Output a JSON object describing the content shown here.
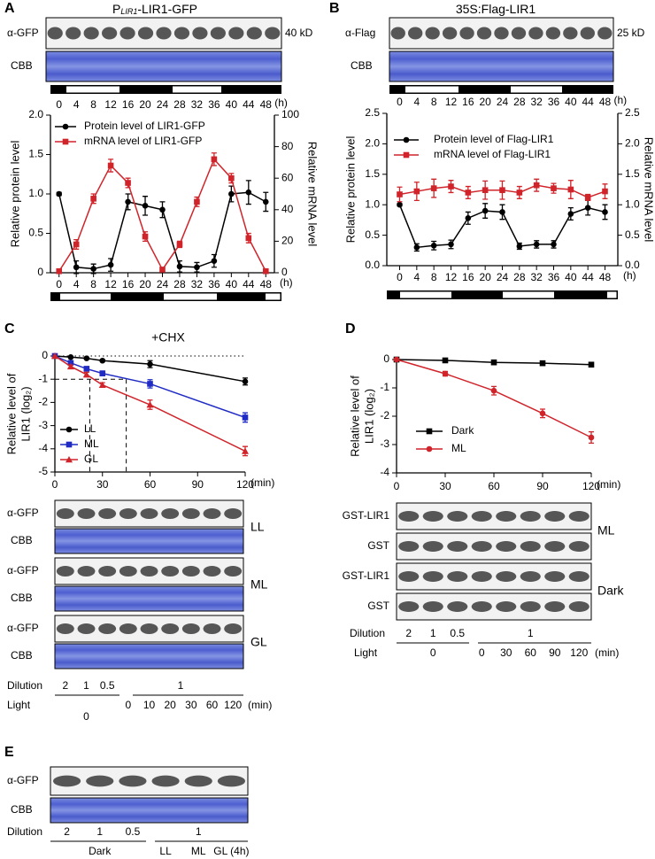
{
  "chart_data": [
    {
      "type": "line",
      "label": "A",
      "title": "P",
      "title_subscript": "LIR1",
      "title_suffix": "-LIR1-GFP",
      "x": [
        0,
        4,
        8,
        12,
        16,
        20,
        24,
        28,
        32,
        36,
        40,
        44,
        48
      ],
      "xlim": [
        -2,
        50
      ],
      "xticks": [
        0,
        4,
        8,
        12,
        16,
        20,
        24,
        28,
        32,
        36,
        40,
        44,
        48
      ],
      "xlabel": "(h)",
      "ylabel": "Relative protein level",
      "ylim": [
        0,
        2
      ],
      "yticks": [
        0,
        0.5,
        {
          "value": 1,
          "label": "1.0"
        },
        1.5,
        {
          "value": 2,
          "label": "2.0"
        }
      ],
      "y2label": "Relative mRNA level",
      "y2lim": [
        0,
        100
      ],
      "y2ticks": [
        0,
        20,
        40,
        60,
        80,
        100
      ],
      "series": [
        {
          "name": "Protein level of LIR1-GFP",
          "color": "#000000",
          "marker": "circle",
          "values": [
            1.0,
            0.07,
            0.05,
            0.1,
            0.9,
            0.85,
            0.8,
            0.08,
            0.07,
            0.15,
            1.0,
            1.02,
            0.9
          ],
          "errors": [
            0.02,
            0.08,
            0.06,
            0.08,
            0.1,
            0.12,
            0.1,
            0.07,
            0.06,
            0.08,
            0.1,
            0.15,
            0.12
          ]
        },
        {
          "name": "mRNA level of LIR1-GFP",
          "color": "#d0242a",
          "marker": "square",
          "axis": "y2",
          "values": [
            1,
            18,
            47,
            68,
            57,
            23,
            2,
            18,
            45,
            72,
            60,
            22,
            1
          ],
          "errors": [
            1,
            3,
            3,
            4,
            3,
            3,
            1,
            2,
            3,
            4,
            3,
            3,
            1
          ]
        }
      ]
    },
    {
      "type": "line",
      "label": "B",
      "title": "35S:Flag-LIR1",
      "x": [
        0,
        4,
        8,
        12,
        16,
        20,
        24,
        28,
        32,
        36,
        40,
        44,
        48
      ],
      "xlim": [
        -3,
        51
      ],
      "xticks": [
        0,
        4,
        8,
        12,
        16,
        20,
        24,
        28,
        32,
        36,
        40,
        44,
        48
      ],
      "xlabel": "(h)",
      "ylabel": "Relative protein level",
      "ylim": [
        0,
        2.5
      ],
      "yticks": [
        {
          "value": 0,
          "label": "0.0"
        },
        0.5,
        {
          "value": 1,
          "label": "1.0"
        },
        1.5,
        {
          "value": 2,
          "label": "2.0"
        },
        2.5
      ],
      "y2label": "Relative mRNA level",
      "y2lim": [
        0,
        2.5
      ],
      "y2ticks": [
        {
          "value": 0,
          "label": "0.0"
        },
        0.5,
        {
          "value": 1,
          "label": "1.0"
        },
        1.5,
        {
          "value": 2,
          "label": "2.0"
        },
        2.5
      ],
      "series": [
        {
          "name": "Protein level of Flag-LIR1",
          "color": "#000000",
          "marker": "circle",
          "values": [
            1.0,
            0.3,
            0.33,
            0.35,
            0.78,
            0.9,
            0.88,
            0.32,
            0.35,
            0.35,
            0.85,
            0.95,
            0.88
          ],
          "errors": [
            0.02,
            0.06,
            0.07,
            0.07,
            0.1,
            0.12,
            0.12,
            0.05,
            0.06,
            0.06,
            0.1,
            0.12,
            0.12
          ]
        },
        {
          "name": "mRNA level of Flag-LIR1",
          "color": "#d0242a",
          "marker": "square",
          "axis": "y2",
          "values": [
            1.17,
            1.22,
            1.27,
            1.3,
            1.2,
            1.24,
            1.24,
            1.2,
            1.32,
            1.27,
            1.25,
            1.12,
            1.22
          ],
          "errors": [
            0.12,
            0.15,
            0.15,
            0.1,
            0.1,
            0.15,
            0.15,
            0.1,
            0.1,
            0.08,
            0.15,
            0.05,
            0.12
          ]
        }
      ]
    },
    {
      "type": "line",
      "label": "C",
      "annotation": "+CHX",
      "x": [
        0,
        10,
        20,
        30,
        60,
        120
      ],
      "xlim": [
        0,
        120
      ],
      "xticks": [
        0,
        30,
        60,
        90,
        120
      ],
      "xlabel": "(min)",
      "ylabel": [
        "Relative level of",
        "LIR1 (log₂)"
      ],
      "ylim": [
        -5,
        0
      ],
      "yticks": [
        -5,
        -4,
        -3,
        -2,
        -1,
        0
      ],
      "zero_line": true,
      "guides": {
        "y": -1,
        "x": [
          22,
          45
        ]
      },
      "legend": "center left",
      "series": [
        {
          "name": "LL",
          "color": "#000000",
          "marker": "circle",
          "values": [
            0,
            -0.05,
            -0.1,
            -0.2,
            -0.35,
            -1.1
          ],
          "errors": [
            0,
            0.03,
            0.03,
            0.04,
            0.15,
            0.15
          ]
        },
        {
          "name": "ML",
          "color": "#1f2bc4",
          "marker": "square",
          "values": [
            0,
            -0.3,
            -0.55,
            -0.75,
            -1.2,
            -2.65
          ],
          "errors": [
            0,
            0.05,
            0.08,
            0.1,
            0.18,
            0.2
          ]
        },
        {
          "name": "GL",
          "color": "#d0242a",
          "marker": "triangle",
          "values": [
            0,
            -0.45,
            -0.8,
            -1.25,
            -2.1,
            -4.1
          ],
          "errors": [
            0,
            0.06,
            0.1,
            0.1,
            0.2,
            0.2
          ]
        }
      ]
    },
    {
      "type": "line",
      "label": "D",
      "x": [
        0,
        30,
        60,
        90,
        120
      ],
      "xlim": [
        0,
        120
      ],
      "xticks": [
        0,
        30,
        60,
        90,
        120
      ],
      "xlabel": "(min)",
      "ylabel": [
        "Relative level of",
        "LIR1 (log₂)"
      ],
      "ylim": [
        -4,
        0
      ],
      "yticks": [
        -4,
        -3,
        -2,
        -1,
        0
      ],
      "legend": "center left",
      "series": [
        {
          "name": "Dark",
          "color": "#000000",
          "marker": "square",
          "values": [
            0,
            -0.03,
            -0.1,
            -0.13,
            -0.18
          ],
          "errors": [
            0,
            0.02,
            0.02,
            0.02,
            0.02
          ]
        },
        {
          "name": "ML",
          "color": "#d0242a",
          "marker": "circle",
          "values": [
            0,
            -0.5,
            -1.1,
            -1.9,
            -2.75
          ],
          "errors": [
            0,
            0.08,
            0.15,
            0.15,
            0.2
          ]
        }
      ]
    }
  ],
  "blots": {
    "A": {
      "rows": [
        "α-GFP",
        "CBB"
      ],
      "size": "40 kD"
    },
    "B": {
      "rows": [
        "α-Flag",
        "CBB"
      ],
      "size": "25 kD"
    },
    "C": {
      "groups": [
        {
          "rows": [
            "α-GFP",
            "CBB"
          ],
          "condition": "LL"
        },
        {
          "rows": [
            "α-GFP",
            "CBB"
          ],
          "condition": "ML"
        },
        {
          "rows": [
            "α-GFP",
            "CBB"
          ],
          "condition": "GL"
        }
      ],
      "dilution_label": "Dilution",
      "dilution": [
        2,
        1,
        0.5,
        1
      ],
      "light_label": "Light",
      "light_control": 0,
      "light_times": [
        0,
        10,
        20,
        30,
        60,
        120
      ],
      "light_unit": "(min)"
    },
    "D": {
      "groups": [
        {
          "rows": [
            "GST-LIR1",
            "GST"
          ],
          "condition": "ML"
        },
        {
          "rows": [
            "GST-LIR1",
            "GST"
          ],
          "condition": "Dark"
        }
      ],
      "dilution_label": "Dilution",
      "dilution": [
        2,
        1,
        0.5,
        1
      ],
      "light_label": "Light",
      "light_control": 0,
      "light_times": [
        0,
        30,
        60,
        90,
        120
      ],
      "light_unit": "(min)"
    },
    "E": {
      "label": "E",
      "rows": [
        "α-GFP",
        "CBB"
      ],
      "dilution_label": "Dilution",
      "dilution": [
        2,
        1,
        0.5,
        1
      ],
      "conditions": [
        "Dark",
        "LL",
        "ML",
        "GL (4h)"
      ]
    }
  }
}
